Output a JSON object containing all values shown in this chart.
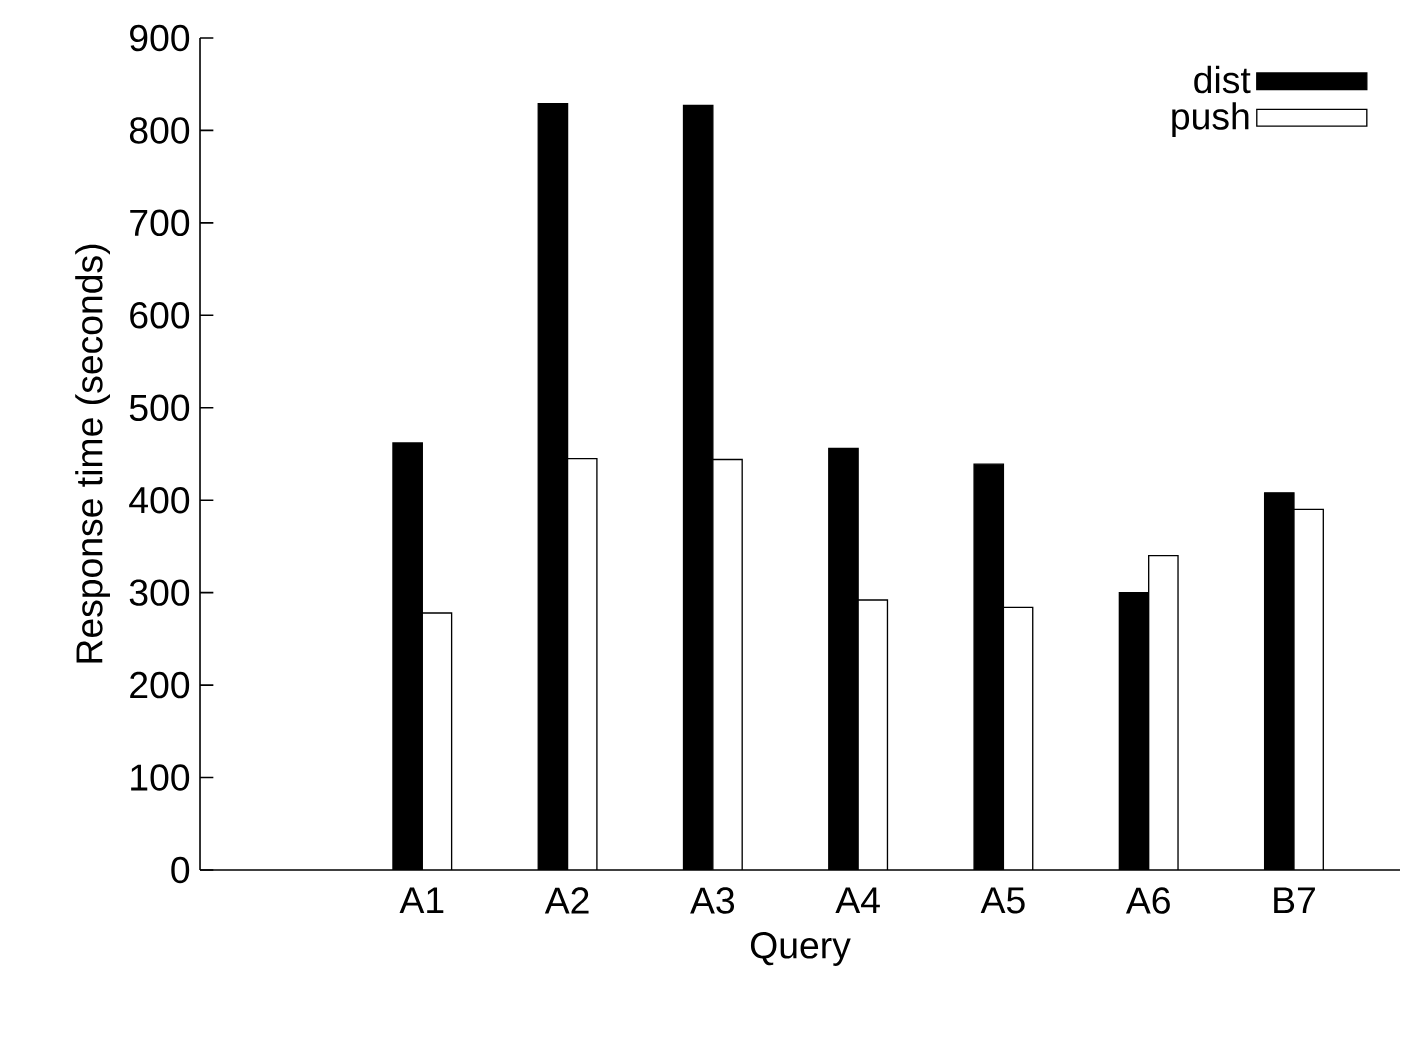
{
  "chart_data": {
    "type": "bar",
    "xlabel": "Query",
    "ylabel": "Response time (seconds)",
    "categories": [
      "A1",
      "A2",
      "A3",
      "A4",
      "A5",
      "A6",
      "B7"
    ],
    "series": [
      {
        "name": "dist",
        "color": "#000000",
        "values": [
          462,
          829,
          827,
          456,
          439,
          300,
          408
        ]
      },
      {
        "name": "push",
        "color": "#ffffff",
        "values": [
          278,
          445,
          444,
          292,
          284,
          340,
          390
        ]
      }
    ],
    "ylim": [
      0,
      900
    ],
    "yticks": [
      0,
      100,
      200,
      300,
      400,
      500,
      600,
      700,
      800,
      900
    ],
    "legend": "top right"
  }
}
